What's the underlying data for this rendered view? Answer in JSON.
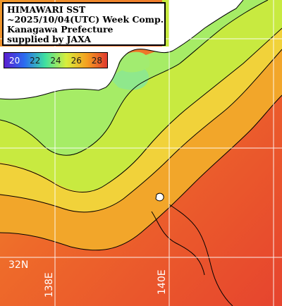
{
  "caption": {
    "line1": "HIMAWARI SST",
    "line2": "~2025/10/04(UTC) Week Comp.",
    "line3": "Kanagawa Prefecture",
    "line4": "supplied by JAXA"
  },
  "colorbar": {
    "ticks": [
      "20",
      "22",
      "24",
      "26",
      "28"
    ],
    "colors": [
      "#5a1fd0",
      "#2a6cf0",
      "#3fe0a0",
      "#b8ee3c",
      "#f4d21c",
      "#f5a020",
      "#f06a28",
      "#e03a30"
    ]
  },
  "grid": {
    "latitudes": [
      {
        "label": "32N"
      }
    ],
    "longitudes": [
      {
        "label": "138E"
      },
      {
        "label": "140E"
      }
    ]
  },
  "colors": {
    "land": "#ffffff",
    "coast_line": "#000000",
    "grid_line": "#ffffff",
    "warm_water": "#e8502c",
    "cool_water": "#a8ee60"
  }
}
